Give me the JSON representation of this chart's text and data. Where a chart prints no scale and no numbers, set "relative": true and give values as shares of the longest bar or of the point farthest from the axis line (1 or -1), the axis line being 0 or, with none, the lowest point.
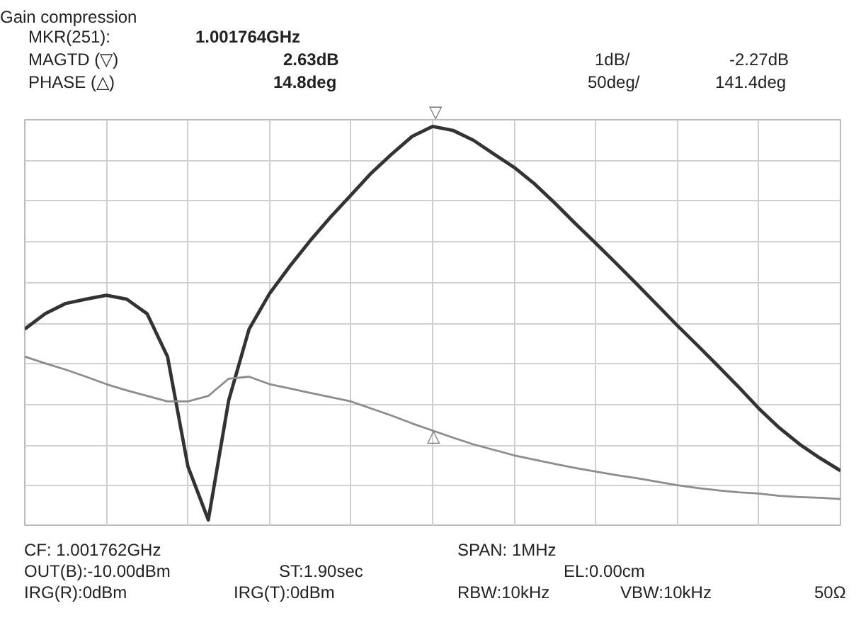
{
  "chart_data": {
    "type": "line",
    "title": "Gain compression",
    "relative": true,
    "tick_labels": false,
    "grid": true,
    "line_style": "solid",
    "categories": [
      null,
      null,
      null,
      null,
      null,
      null,
      null,
      null,
      null,
      null,
      null,
      null,
      null,
      null,
      null,
      null,
      null,
      null,
      null,
      null,
      null,
      null,
      null,
      null,
      null,
      null,
      null,
      null,
      null,
      null,
      null,
      null,
      null,
      null,
      null,
      null,
      null,
      null,
      null,
      null,
      null
    ],
    "series": [
      {
        "color": "#333333",
        "values": [
          0.485,
          0.524,
          0.55,
          0.561,
          0.571,
          0.561,
          0.524,
          0.415,
          0.136,
          0,
          0.304,
          0.485,
          0.575,
          0.645,
          0.71,
          0.77,
          0.826,
          0.882,
          0.93,
          0.975,
          1,
          0.99,
          0.965,
          0.93,
          0.896,
          0.854,
          0.805,
          0.753,
          0.703,
          0.652,
          0.6,
          0.547,
          0.494,
          0.443,
          0.391,
          0.338,
          0.283,
          0.234,
          0.192,
          0.157,
          0.125
        ]
      },
      {
        "color": "#8c8c8c",
        "values": [
          0.415,
          0.398,
          0.382,
          0.364,
          0.345,
          0.329,
          0.315,
          0.301,
          0.301,
          0.315,
          0.359,
          0.364,
          0.345,
          0.334,
          0.323,
          0.312,
          0.301,
          0.283,
          0.265,
          0.245,
          0.227,
          0.209,
          0.192,
          0.178,
          0.164,
          0.153,
          0.142,
          0.132,
          0.123,
          0.114,
          0.106,
          0.097,
          0.088,
          0.081,
          0.075,
          0.07,
          0.067,
          0.061,
          0.058,
          0.056,
          0.053
        ]
      }
    ],
    "annotations": [
      "MKR(251):",
      "1.001764GHz",
      "MAGTD (▽)",
      "2.63dB",
      "PHASE  (△)",
      "14.8deg",
      "1dB/",
      "-2.27dB",
      "50deg/",
      "141.4deg",
      "CF:  1.001762GHz",
      "OUT(B):-10.00dBm",
      "IRG(R):0dBm",
      "ST:1.90sec",
      "IRG(T):0dBm",
      "SPAN:  1MHz",
      "EL:0.00cm",
      "RBW:10kHz",
      "VBW:10kHz",
      "50Ω",
      "▽",
      "△"
    ]
  }
}
